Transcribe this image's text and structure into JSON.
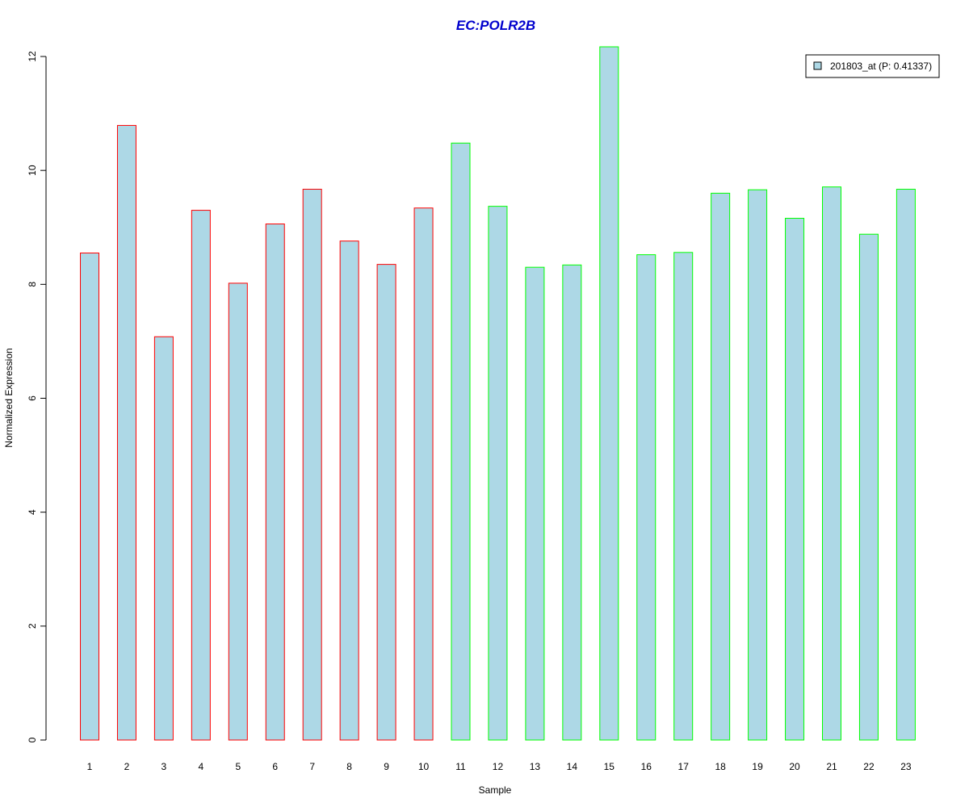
{
  "chart_data": {
    "type": "bar",
    "title": "EC:POLR2B",
    "xlabel": "Sample",
    "ylabel": "Normalized Expression",
    "ylim": [
      0,
      12
    ],
    "yticks": [
      0,
      2,
      4,
      6,
      8,
      10,
      12
    ],
    "categories": [
      "1",
      "2",
      "3",
      "4",
      "5",
      "6",
      "7",
      "8",
      "9",
      "10",
      "11",
      "12",
      "13",
      "14",
      "15",
      "16",
      "17",
      "18",
      "19",
      "20",
      "21",
      "22",
      "23"
    ],
    "series": [
      {
        "name": "201803_at (P: 0.41337)",
        "values": [
          8.55,
          10.79,
          7.08,
          9.3,
          8.02,
          9.06,
          9.67,
          8.76,
          8.35,
          9.34,
          10.48,
          9.37,
          8.3,
          8.34,
          12.17,
          8.52,
          8.56,
          9.6,
          9.66,
          9.16,
          9.71,
          8.88,
          9.67
        ],
        "groups": [
          "red",
          "red",
          "red",
          "red",
          "red",
          "red",
          "red",
          "red",
          "red",
          "red",
          "green",
          "green",
          "green",
          "green",
          "green",
          "green",
          "green",
          "green",
          "green",
          "green",
          "green",
          "green",
          "green"
        ]
      }
    ],
    "legend": {
      "position": "top-right",
      "label": "201803_at (P: 0.41337)"
    },
    "grid": false
  },
  "colors": {
    "bar_fill": "#add8e6",
    "group_red": "#ff0000",
    "group_green": "#00ff00",
    "title": "#0000cd",
    "axis": "#000000"
  }
}
